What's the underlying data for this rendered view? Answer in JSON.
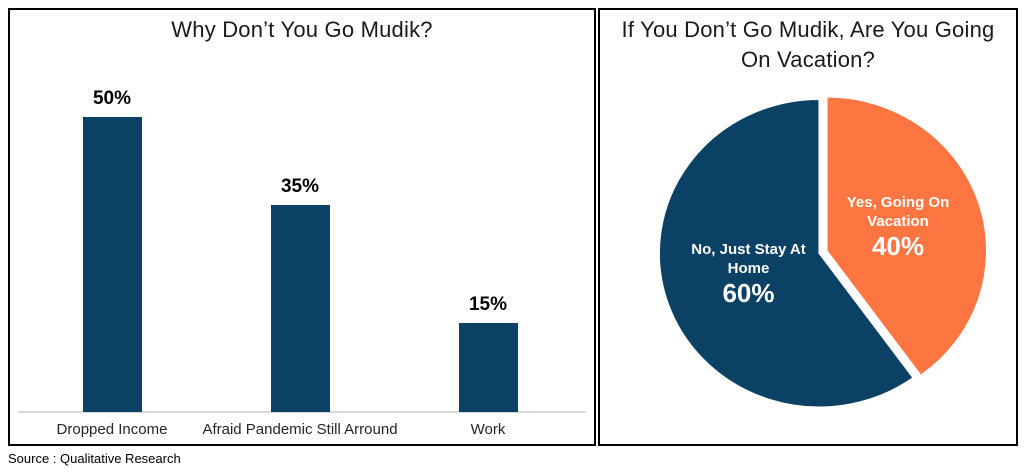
{
  "page": {
    "background": "#ffffff",
    "panel_border_color": "#000000"
  },
  "source": "Source : Qualitative Research",
  "chart_data": [
    {
      "type": "bar",
      "title": "Why Don’t You Go Mudik?",
      "categories": [
        "Dropped Income",
        "Afraid Pandemic Still Arround",
        "Work"
      ],
      "values": [
        50,
        35,
        15
      ],
      "value_labels": [
        "50%",
        "35%",
        "15%"
      ],
      "unit": "%",
      "bar_color": "#0B4164",
      "axis_color": "#D9D9D9",
      "gridlines": false,
      "legend": "none",
      "y_axis_visible": false
    },
    {
      "type": "pie",
      "title": "If You Don’t Go Mudik, Are You Going On Vacation?",
      "start_angle": "12 o'clock",
      "direction": "clockwise",
      "legend": "none",
      "slices": [
        {
          "label": "Yes, Going On Vacation",
          "value": 40,
          "value_label": "40%",
          "color": "#FD7541",
          "text_color": "#FFFFFF"
        },
        {
          "label": "No, Just Stay At Home",
          "value": 60,
          "value_label": "60%",
          "color": "#0B4164",
          "text_color": "#FFFFFF"
        }
      ]
    }
  ]
}
